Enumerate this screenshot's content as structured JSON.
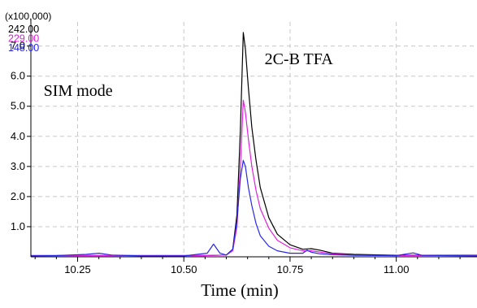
{
  "chart_data": {
    "type": "line",
    "title": "",
    "scale_label": "(x100,000)",
    "xlabel": "Time (min)",
    "ylabel": "",
    "xlim": [
      10.14,
      11.19
    ],
    "ylim": [
      0,
      7.8
    ],
    "xticks": [
      10.25,
      10.5,
      10.75,
      11.0
    ],
    "xtick_labels": [
      "10.25",
      "10.50",
      "10.75",
      "11.00"
    ],
    "yticks": [
      1.0,
      2.0,
      3.0,
      4.0,
      5.0,
      6.0,
      7.0
    ],
    "ytick_labels": [
      "1.0",
      "2.0",
      "3.0",
      "4.0",
      "5.0",
      "6.0",
      "7.0"
    ],
    "grid": true,
    "annotations": [
      {
        "text": "SIM mode",
        "x": 10.17,
        "y": 5.35
      },
      {
        "text": "2C-B TFA",
        "x": 10.69,
        "y": 6.4
      }
    ],
    "series": [
      {
        "name": "242.00",
        "color": "#000000",
        "x": [
          10.14,
          10.25,
          10.55,
          10.6,
          10.615,
          10.625,
          10.633,
          10.64,
          10.645,
          10.652,
          10.66,
          10.67,
          10.68,
          10.7,
          10.72,
          10.75,
          10.78,
          10.8,
          10.82,
          10.85,
          10.9,
          11.0,
          11.19
        ],
        "y": [
          0.04,
          0.04,
          0.04,
          0.06,
          0.25,
          1.4,
          4.2,
          7.45,
          6.9,
          5.6,
          4.3,
          3.2,
          2.3,
          1.3,
          0.75,
          0.4,
          0.25,
          0.27,
          0.22,
          0.12,
          0.08,
          0.05,
          0.05
        ]
      },
      {
        "name": "229.00",
        "color": "#e020e0",
        "x": [
          10.14,
          10.25,
          10.55,
          10.6,
          10.615,
          10.625,
          10.633,
          10.64,
          10.645,
          10.652,
          10.66,
          10.67,
          10.68,
          10.7,
          10.72,
          10.75,
          10.78,
          10.8,
          10.82,
          10.85,
          10.9,
          11.0,
          11.19
        ],
        "y": [
          0.04,
          0.04,
          0.04,
          0.06,
          0.2,
          1.0,
          3.0,
          5.2,
          4.8,
          3.9,
          3.0,
          2.2,
          1.6,
          0.95,
          0.55,
          0.3,
          0.2,
          0.2,
          0.16,
          0.1,
          0.06,
          0.04,
          0.04
        ]
      },
      {
        "name": "148.00",
        "color": "#2828e8",
        "x": [
          10.14,
          10.2,
          10.27,
          10.3,
          10.33,
          10.4,
          10.5,
          10.555,
          10.57,
          10.585,
          10.6,
          10.615,
          10.625,
          10.633,
          10.64,
          10.645,
          10.652,
          10.66,
          10.67,
          10.68,
          10.7,
          10.72,
          10.75,
          10.78,
          10.79,
          10.8,
          10.82,
          10.85,
          10.9,
          11.0,
          11.04,
          11.06,
          11.19
        ],
        "y": [
          0.03,
          0.04,
          0.08,
          0.12,
          0.06,
          0.03,
          0.03,
          0.12,
          0.42,
          0.12,
          0.06,
          0.25,
          1.2,
          2.6,
          3.2,
          3.0,
          2.3,
          1.7,
          1.1,
          0.7,
          0.35,
          0.2,
          0.12,
          0.12,
          0.22,
          0.15,
          0.1,
          0.07,
          0.05,
          0.04,
          0.13,
          0.05,
          0.03
        ]
      }
    ]
  }
}
